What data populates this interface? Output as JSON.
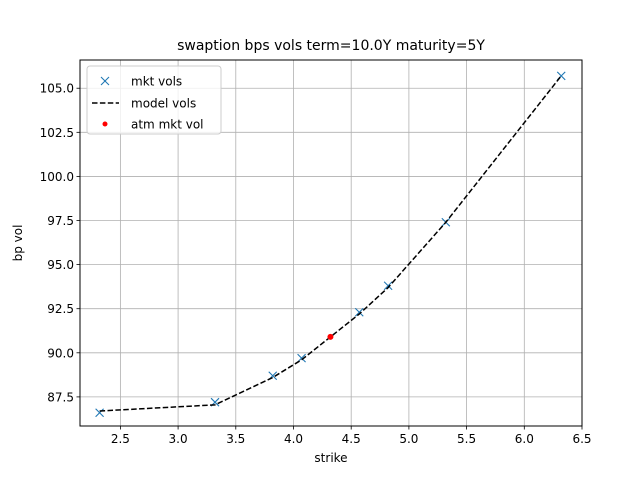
{
  "chart_data": {
    "type": "line",
    "title": "swaption bps vols term=10.0Y maturity=5Y",
    "xlabel": "strike",
    "ylabel": "bp vol",
    "xlim": [
      2.15,
      6.5
    ],
    "ylim": [
      85.85,
      106.6
    ],
    "xticks": [
      2.5,
      3.0,
      3.5,
      4.0,
      4.5,
      5.0,
      5.5,
      6.0,
      6.5
    ],
    "xtick_labels": [
      "2.5",
      "3.0",
      "3.5",
      "4.0",
      "4.5",
      "5.0",
      "5.5",
      "6.0",
      "6.5"
    ],
    "yticks": [
      87.5,
      90.0,
      92.5,
      95.0,
      97.5,
      100.0,
      102.5,
      105.0
    ],
    "ytick_labels": [
      "87.5",
      "90.0",
      "92.5",
      "95.0",
      "97.5",
      "100.0",
      "102.5",
      "105.0"
    ],
    "grid": true,
    "legend_position": "upper-left",
    "series": [
      {
        "name": "mkt vols",
        "style": "x-markers",
        "color": "#1f77b4",
        "x": [
          2.32,
          3.32,
          3.82,
          4.07,
          4.57,
          4.82,
          5.32,
          6.32
        ],
        "y": [
          86.6,
          87.2,
          88.7,
          89.7,
          92.3,
          93.8,
          97.4,
          105.7
        ]
      },
      {
        "name": "model vols",
        "style": "dashed-line",
        "color": "#000000",
        "x": [
          2.32,
          3.32,
          3.82,
          4.07,
          4.32,
          4.57,
          4.82,
          5.32,
          6.32
        ],
        "y": [
          86.7,
          87.05,
          88.6,
          89.6,
          90.9,
          92.2,
          93.7,
          97.4,
          105.7
        ]
      },
      {
        "name": "atm mkt vol",
        "style": "dot",
        "color": "#ff0000",
        "x": [
          4.32
        ],
        "y": [
          90.9
        ]
      }
    ]
  }
}
